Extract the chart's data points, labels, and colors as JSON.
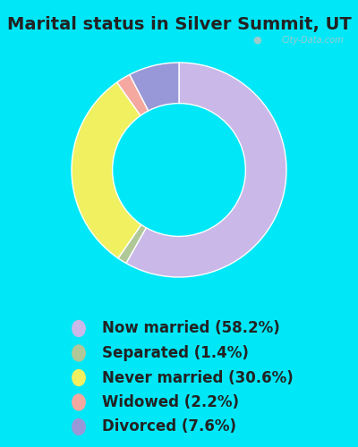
{
  "title": "Marital status in Silver Summit, UT",
  "slices": [
    58.2,
    1.4,
    30.6,
    2.2,
    7.6
  ],
  "labels": [
    "Now married (58.2%)",
    "Separated (1.4%)",
    "Never married (30.6%)",
    "Widowed (2.2%)",
    "Divorced (7.6%)"
  ],
  "colors": [
    "#c9b8e8",
    "#b0c898",
    "#f0f060",
    "#f4a8a0",
    "#9898d8"
  ],
  "bg_color": "#00e8f8",
  "chart_bg": "#d0ecd8",
  "title_fontsize": 14,
  "legend_fontsize": 12,
  "watermark": "City-Data.com",
  "donut_width": 0.38,
  "startangle": 90
}
